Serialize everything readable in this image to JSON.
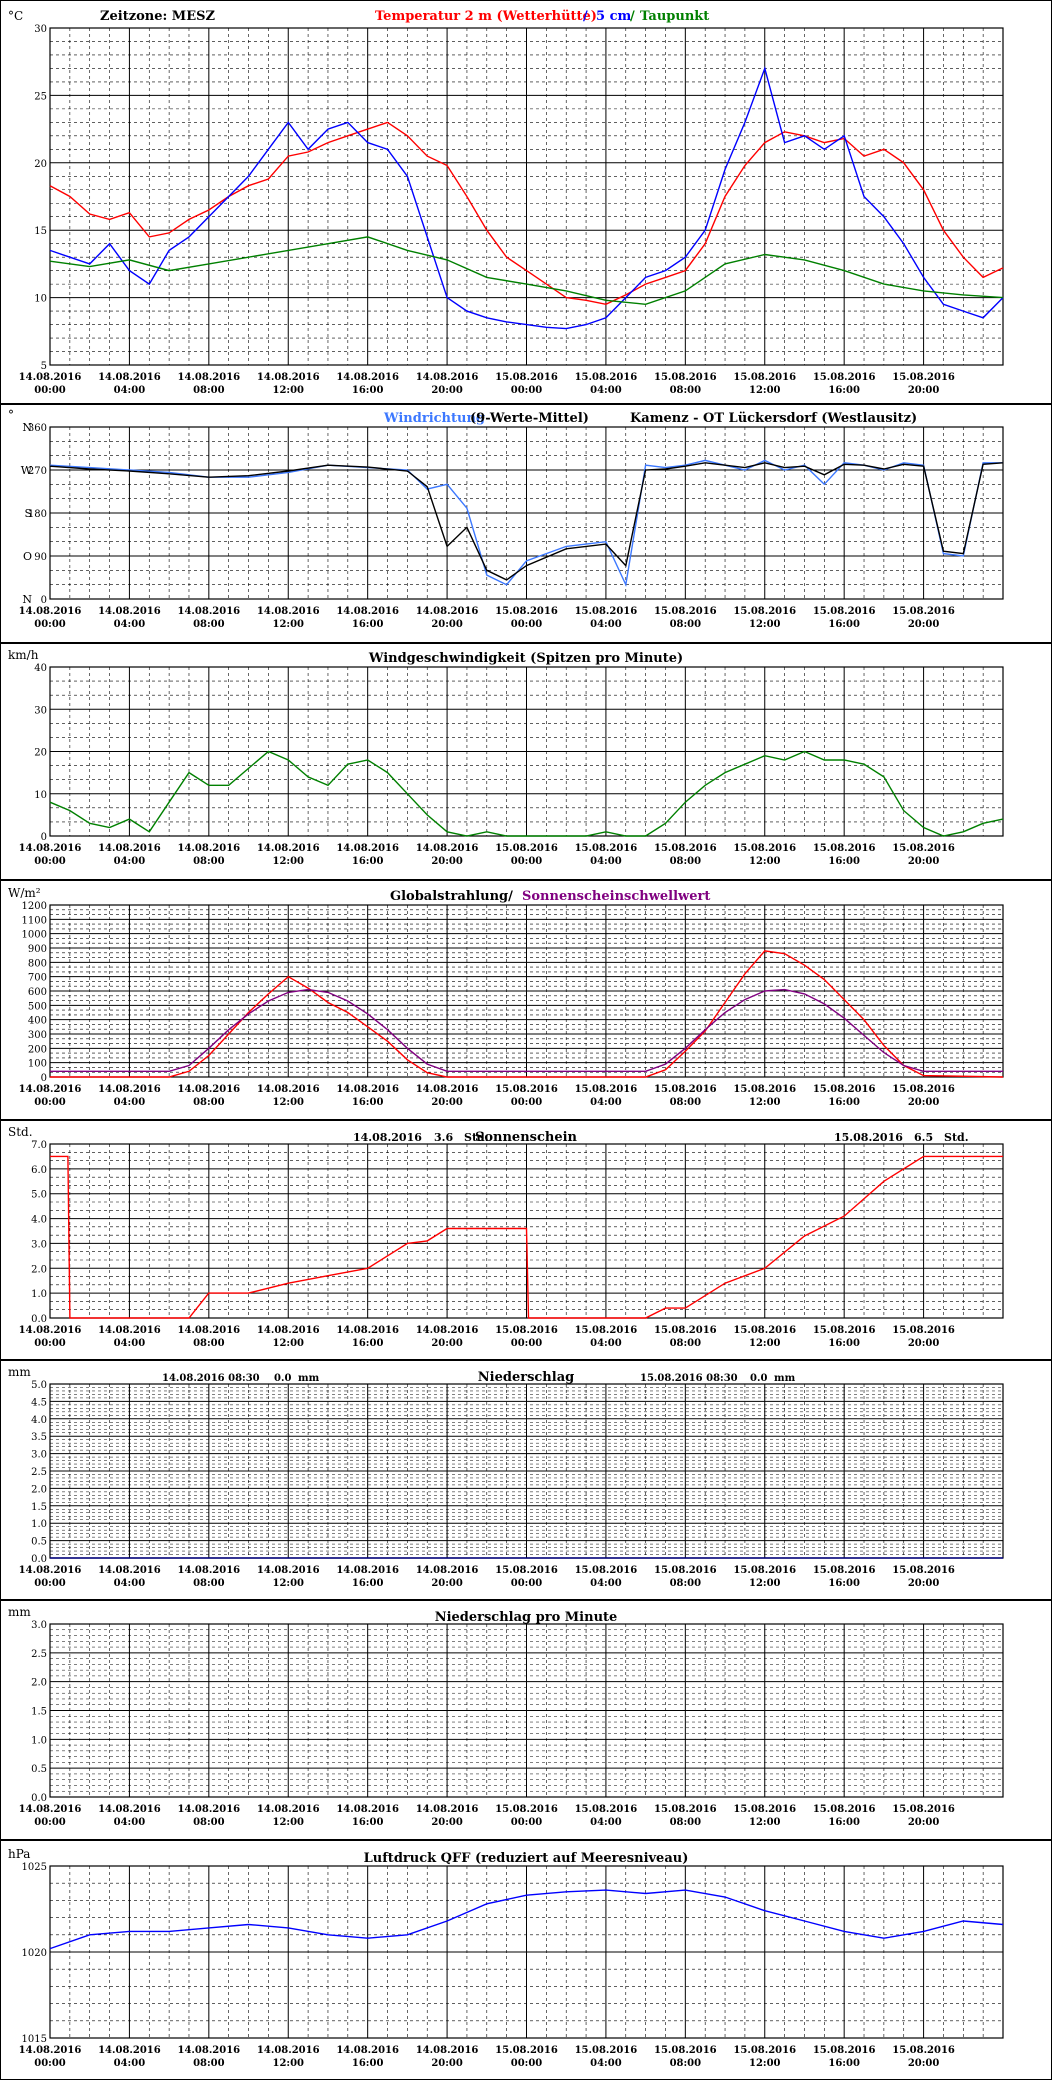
{
  "header": {
    "timezone": "Zeitzone: MESZ",
    "title_temp": "Temperatur 2 m (Wetterhütte)",
    "title_sep": "/",
    "title_5cm": "5 cm",
    "title_sep2": "/",
    "title_dew": "Taupunkt"
  },
  "colors": {
    "temp2m": "#ff0000",
    "temp5cm": "#0000ff",
    "dewpoint": "#008000",
    "wind_dir": "#3c78ff",
    "wind_dir_mean": "#000000",
    "wind_speed": "#008000",
    "radiation": "#ff0000",
    "radiation_threshold": "#800080",
    "sunshine": "#ff0000",
    "precip": "#000080",
    "pressure": "#0000ff",
    "grid_major": "#000000",
    "grid_minor": "#000000"
  },
  "x_axis": {
    "dates": [
      "14.08.2016",
      "14.08.2016",
      "14.08.2016",
      "14.08.2016",
      "14.08.2016",
      "14.08.2016",
      "15.08.2016",
      "15.08.2016",
      "15.08.2016",
      "15.08.2016",
      "15.08.2016",
      "15.08.2016"
    ],
    "times": [
      "00:00",
      "04:00",
      "08:00",
      "12:00",
      "16:00",
      "20:00",
      "00:00",
      "04:00",
      "08:00",
      "12:00",
      "16:00",
      "20:00"
    ],
    "range_hours": [
      0,
      48
    ]
  },
  "chart_data": [
    {
      "id": "temperature",
      "type": "line",
      "title": "",
      "unit_label": "°C",
      "ylim": [
        5,
        30
      ],
      "yticks": [
        5,
        10,
        15,
        20,
        25,
        30
      ],
      "grid": true,
      "series": [
        {
          "name": "Temperatur 2 m (Wetterhütte)",
          "color_key": "temp2m",
          "x": [
            0,
            1,
            2,
            3,
            4,
            5,
            6,
            7,
            8,
            9,
            10,
            11,
            12,
            13,
            14,
            15,
            16,
            17,
            18,
            19,
            20,
            21,
            22,
            23,
            24,
            25,
            26,
            27,
            28,
            29,
            30,
            31,
            32,
            33,
            34,
            35,
            36,
            37,
            38,
            39,
            40,
            41,
            42,
            43,
            44,
            45,
            46,
            47,
            48
          ],
          "y": [
            18.3,
            17.5,
            16.2,
            15.8,
            16.3,
            14.5,
            14.8,
            15.8,
            16.5,
            17.5,
            18.3,
            18.8,
            20.5,
            20.8,
            21.5,
            22.0,
            22.5,
            23.0,
            22.0,
            20.5,
            19.8,
            17.5,
            15.0,
            13.0,
            12.0,
            11.0,
            10.0,
            9.8,
            9.5,
            10.2,
            11.0,
            11.5,
            12.0,
            14.0,
            17.5,
            19.8,
            21.5,
            22.3,
            22.0,
            21.5,
            21.8,
            20.5,
            21.0,
            20.0,
            18.0,
            15.0,
            13.0,
            11.5,
            12.2
          ]
        },
        {
          "name": "5 cm",
          "color_key": "temp5cm",
          "x": [
            0,
            1,
            2,
            3,
            4,
            5,
            6,
            7,
            8,
            9,
            10,
            11,
            12,
            13,
            14,
            15,
            16,
            17,
            18,
            19,
            20,
            21,
            22,
            23,
            24,
            25,
            26,
            27,
            28,
            29,
            30,
            31,
            32,
            33,
            34,
            35,
            36,
            37,
            38,
            39,
            40,
            41,
            42,
            43,
            44,
            45,
            46,
            47,
            48
          ],
          "y": [
            13.5,
            13.0,
            12.5,
            14.0,
            12.0,
            11.0,
            13.5,
            14.5,
            16.0,
            17.5,
            19.0,
            21.0,
            23.0,
            21.0,
            22.5,
            23.0,
            21.5,
            21.0,
            19.0,
            14.5,
            10.0,
            9.0,
            8.5,
            8.2,
            8.0,
            7.8,
            7.7,
            8.0,
            8.5,
            10.0,
            11.5,
            12.0,
            13.0,
            15.0,
            19.5,
            23.0,
            27.0,
            21.5,
            22.0,
            21.0,
            22.0,
            17.5,
            16.0,
            14.0,
            11.5,
            9.5,
            9.0,
            8.5,
            10.0
          ]
        },
        {
          "name": "Taupunkt",
          "color_key": "dewpoint",
          "x": [
            0,
            2,
            4,
            6,
            8,
            10,
            12,
            14,
            16,
            18,
            20,
            22,
            24,
            26,
            28,
            30,
            32,
            34,
            36,
            38,
            40,
            42,
            44,
            46,
            48
          ],
          "y": [
            12.7,
            12.3,
            12.8,
            12.0,
            12.5,
            13.0,
            13.5,
            14.0,
            14.5,
            13.5,
            12.8,
            11.5,
            11.0,
            10.5,
            9.8,
            9.5,
            10.5,
            12.5,
            13.2,
            12.8,
            12.0,
            11.0,
            10.5,
            10.2,
            10.0
          ]
        }
      ]
    },
    {
      "id": "wind_direction",
      "type": "line",
      "title": "Windrichtung",
      "title2": "(9-Werte-Mittel)",
      "station": "Kamenz - OT Lückersdorf (Westlausitz)",
      "unit_label": "°",
      "ylim": [
        0,
        360
      ],
      "yticks": [
        0,
        90,
        180,
        270,
        360
      ],
      "compass": [
        "N",
        "O",
        "S",
        "W",
        "N"
      ],
      "grid": true,
      "series": [
        {
          "name": "Windrichtung",
          "color_key": "wind_dir",
          "x": [
            0,
            2,
            4,
            6,
            8,
            10,
            12,
            14,
            16,
            18,
            19,
            20,
            21,
            22,
            23,
            24,
            26,
            28,
            29,
            30,
            31,
            32,
            33,
            34,
            35,
            36,
            37,
            38,
            39,
            40,
            41,
            42,
            43,
            44,
            45,
            46,
            47,
            48
          ],
          "y": [
            280,
            275,
            270,
            265,
            255,
            255,
            265,
            280,
            275,
            270,
            230,
            240,
            190,
            50,
            30,
            80,
            110,
            120,
            30,
            280,
            275,
            280,
            290,
            280,
            270,
            290,
            270,
            280,
            240,
            285,
            280,
            270,
            285,
            280,
            95,
            90,
            285,
            285
          ]
        },
        {
          "name": "9-Werte-Mittel",
          "color_key": "wind_dir_mean",
          "x": [
            0,
            2,
            4,
            6,
            8,
            10,
            12,
            14,
            16,
            18,
            19,
            20,
            21,
            22,
            23,
            24,
            26,
            28,
            29,
            30,
            31,
            32,
            33,
            34,
            35,
            36,
            37,
            38,
            39,
            40,
            41,
            42,
            43,
            44,
            45,
            46,
            47,
            48
          ],
          "y": [
            278,
            272,
            268,
            262,
            255,
            258,
            268,
            280,
            276,
            268,
            235,
            110,
            150,
            60,
            40,
            70,
            105,
            115,
            70,
            270,
            272,
            278,
            285,
            280,
            275,
            285,
            275,
            278,
            260,
            282,
            280,
            272,
            282,
            278,
            100,
            95,
            282,
            285
          ]
        }
      ]
    },
    {
      "id": "wind_speed",
      "type": "line",
      "title": "Windgeschwindigkeit (Spitzen pro Minute)",
      "unit_label": "km/h",
      "ylim": [
        0,
        40
      ],
      "yticks": [
        0,
        10,
        20,
        30,
        40
      ],
      "grid": true,
      "series": [
        {
          "name": "Windgeschwindigkeit",
          "color_key": "wind_speed",
          "x": [
            0,
            1,
            2,
            3,
            4,
            5,
            6,
            7,
            8,
            9,
            10,
            11,
            12,
            13,
            14,
            15,
            16,
            17,
            18,
            19,
            20,
            21,
            22,
            23,
            24,
            25,
            26,
            27,
            28,
            29,
            30,
            31,
            32,
            33,
            34,
            35,
            36,
            37,
            38,
            39,
            40,
            41,
            42,
            43,
            44,
            45,
            46,
            47,
            48
          ],
          "y": [
            8,
            6,
            3,
            2,
            4,
            1,
            8,
            15,
            12,
            12,
            16,
            20,
            18,
            14,
            12,
            17,
            18,
            15,
            10,
            5,
            1,
            0,
            1,
            0,
            0,
            0,
            0,
            0,
            1,
            0,
            0,
            3,
            8,
            12,
            15,
            17,
            19,
            18,
            20,
            18,
            18,
            17,
            14,
            6,
            2,
            0,
            1,
            3,
            4
          ]
        }
      ]
    },
    {
      "id": "radiation",
      "type": "line",
      "title": "Globalstrahlung/",
      "title2": "Sonnenscheinschwellwert",
      "unit_label": "W/m²",
      "ylim": [
        0,
        1200
      ],
      "yticks": [
        0,
        100,
        200,
        300,
        400,
        500,
        600,
        700,
        800,
        900,
        1000,
        1100,
        1200
      ],
      "grid": true,
      "series": [
        {
          "name": "Globalstrahlung",
          "color_key": "radiation",
          "x": [
            0,
            6,
            7,
            8,
            9,
            10,
            11,
            12,
            13,
            14,
            15,
            16,
            17,
            18,
            19,
            20,
            24,
            30,
            31,
            32,
            33,
            34,
            35,
            36,
            37,
            38,
            39,
            40,
            41,
            42,
            43,
            44,
            48
          ],
          "y": [
            0,
            0,
            40,
            150,
            300,
            450,
            580,
            700,
            620,
            520,
            450,
            350,
            250,
            120,
            30,
            0,
            0,
            0,
            50,
            180,
            320,
            520,
            720,
            880,
            860,
            780,
            680,
            540,
            400,
            220,
            80,
            10,
            0
          ]
        },
        {
          "name": "Sonnenscheinschwellwert",
          "color_key": "radiation_threshold",
          "x": [
            0,
            6,
            7,
            8,
            9,
            10,
            11,
            12,
            13,
            14,
            15,
            16,
            17,
            18,
            19,
            20,
            24,
            30,
            31,
            32,
            33,
            34,
            35,
            36,
            37,
            38,
            39,
            40,
            41,
            42,
            43,
            44,
            48
          ],
          "y": [
            40,
            40,
            80,
            200,
            330,
            440,
            530,
            590,
            610,
            590,
            530,
            440,
            330,
            200,
            90,
            40,
            40,
            40,
            90,
            200,
            330,
            450,
            540,
            600,
            610,
            580,
            510,
            410,
            290,
            170,
            80,
            40,
            40
          ]
        }
      ]
    },
    {
      "id": "sunshine",
      "type": "line",
      "title": "Sonnenschein",
      "unit_label": "Std.",
      "ylim": [
        0,
        7
      ],
      "yticks": [
        0,
        1,
        2,
        3,
        4,
        5,
        6,
        7
      ],
      "grid": true,
      "day_totals": [
        {
          "date": "14.08.2016",
          "value": "3.6",
          "unit": "Std."
        },
        {
          "date": "15.08.2016",
          "value": "6.5",
          "unit": "Std."
        }
      ],
      "series": [
        {
          "name": "Sonnenschein",
          "color_key": "sunshine",
          "x": [
            0,
            0.9,
            1,
            7,
            8,
            10,
            12,
            14,
            16,
            18,
            19,
            20,
            24,
            24.1,
            30,
            31,
            32,
            34,
            36,
            38,
            40,
            42,
            44,
            48
          ],
          "y": [
            6.5,
            6.5,
            0,
            0,
            1.0,
            1.0,
            1.4,
            1.7,
            2.0,
            3.0,
            3.1,
            3.6,
            3.6,
            0,
            0,
            0.4,
            0.4,
            1.4,
            2.0,
            3.3,
            4.1,
            5.5,
            6.5,
            6.5
          ]
        }
      ]
    },
    {
      "id": "precipitation",
      "type": "line",
      "title": "Niederschlag",
      "unit_label": "mm",
      "ylim": [
        0,
        5
      ],
      "yticks": [
        0,
        0.5,
        1,
        1.5,
        2,
        2.5,
        3,
        3.5,
        4,
        4.5,
        5
      ],
      "grid": true,
      "day_totals": [
        {
          "date": "14.08.2016 08:30",
          "value": "0.0",
          "unit": "mm"
        },
        {
          "date": "15.08.2016 08:30",
          "value": "0.0",
          "unit": "mm"
        }
      ],
      "series": [
        {
          "name": "Niederschlag",
          "color_key": "precip",
          "x": [
            0,
            48
          ],
          "y": [
            0,
            0
          ]
        }
      ]
    },
    {
      "id": "precip_minute",
      "type": "line",
      "title": "Niederschlag pro Minute",
      "unit_label": "mm",
      "ylim": [
        0,
        3
      ],
      "yticks": [
        0,
        0.5,
        1,
        1.5,
        2,
        2.5,
        3
      ],
      "grid": true,
      "series": []
    },
    {
      "id": "pressure",
      "type": "line",
      "title": "Luftdruck QFF (reduziert auf Meeresniveau)",
      "unit_label": "hPa",
      "ylim": [
        1015,
        1025
      ],
      "yticks": [
        1015,
        1020,
        1025
      ],
      "grid": true,
      "series": [
        {
          "name": "Luftdruck QFF",
          "color_key": "pressure",
          "x": [
            0,
            2,
            4,
            6,
            8,
            10,
            12,
            14,
            16,
            18,
            20,
            22,
            24,
            26,
            28,
            30,
            32,
            34,
            36,
            38,
            40,
            42,
            44,
            46,
            48
          ],
          "y": [
            1020.2,
            1021.0,
            1021.2,
            1021.2,
            1021.4,
            1021.6,
            1021.4,
            1021.0,
            1020.8,
            1021.0,
            1021.8,
            1022.8,
            1023.3,
            1023.5,
            1023.6,
            1023.4,
            1023.6,
            1023.2,
            1022.4,
            1021.8,
            1021.2,
            1020.8,
            1021.2,
            1021.8,
            1021.6
          ]
        }
      ]
    }
  ]
}
